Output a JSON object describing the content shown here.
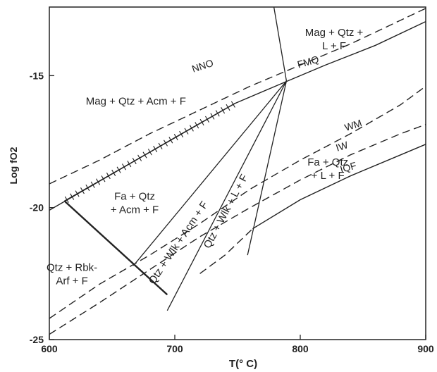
{
  "chart_data": {
    "type": "line",
    "xlabel": "T(° C)",
    "ylabel": "Log fO2",
    "xlim": [
      600,
      900
    ],
    "ylim": [
      -25,
      -12.4
    ],
    "x_ticks": [
      {
        "value": 600,
        "label": "600"
      },
      {
        "value": 700,
        "label": "700"
      },
      {
        "value": 800,
        "label": "800"
      },
      {
        "value": 900,
        "label": "900"
      }
    ],
    "y_ticks": [
      {
        "value": -15,
        "label": "-15"
      },
      {
        "value": -20,
        "label": "-20"
      },
      {
        "value": -25,
        "label": "-25"
      }
    ],
    "series": [
      {
        "name": "NNO",
        "style": "dashed",
        "points": [
          [
            600,
            -19.1
          ],
          [
            640,
            -18.2
          ],
          [
            680,
            -17.2
          ],
          [
            720,
            -16.3
          ],
          [
            760,
            -15.4
          ],
          [
            800,
            -14.6
          ],
          [
            840,
            -13.8
          ],
          [
            880,
            -12.9
          ],
          [
            900,
            -12.45
          ]
        ]
      },
      {
        "name": "FMQ",
        "style": "solid",
        "points": [
          [
            600,
            -20.1
          ],
          [
            640,
            -19.0
          ],
          [
            700,
            -17.35
          ],
          [
            748,
            -16.05
          ],
          [
            790,
            -15.2
          ],
          [
            820,
            -14.6
          ],
          [
            860,
            -13.85
          ],
          [
            900,
            -12.95
          ]
        ]
      },
      {
        "name": "WM",
        "style": "dashed",
        "points": [
          [
            600,
            -24.2
          ],
          [
            640,
            -22.9
          ],
          [
            680,
            -21.8
          ],
          [
            720,
            -20.6
          ],
          [
            760,
            -19.3
          ],
          [
            800,
            -18.2
          ],
          [
            840,
            -17.2
          ],
          [
            880,
            -16.1
          ],
          [
            900,
            -15.4
          ]
        ]
      },
      {
        "name": "IW",
        "style": "dashed",
        "points": [
          [
            600,
            -24.8
          ],
          [
            640,
            -23.6
          ],
          [
            680,
            -22.35
          ],
          [
            720,
            -21.1
          ],
          [
            760,
            -20.0
          ],
          [
            800,
            -18.95
          ],
          [
            840,
            -18.0
          ],
          [
            880,
            -17.2
          ],
          [
            900,
            -16.85
          ]
        ]
      },
      {
        "name": "IQF",
        "style": "mixed",
        "points": [
          [
            720,
            -22.5
          ],
          [
            740,
            -21.8
          ],
          [
            762,
            -20.8
          ],
          [
            800,
            -19.7
          ],
          [
            840,
            -18.8
          ],
          [
            880,
            -18.0
          ],
          [
            900,
            -17.6
          ]
        ]
      }
    ],
    "reactions": [
      {
        "style": "solid",
        "points": [
          [
            789,
            -15.2
          ],
          [
            667,
            -22.2
          ]
        ]
      },
      {
        "style": "solid",
        "points": [
          [
            789,
            -15.2
          ],
          [
            694,
            -23.9
          ]
        ]
      },
      {
        "style": "solid",
        "points": [
          [
            789,
            -15.2
          ],
          [
            758,
            -21.8
          ]
        ]
      },
      {
        "style": "solid",
        "points": [
          [
            779,
            -12.4
          ],
          [
            789,
            -15.2
          ]
        ]
      },
      {
        "style": "heavy",
        "points": [
          [
            612,
            -19.75
          ],
          [
            694,
            -23.3
          ]
        ]
      }
    ],
    "hatched_segment": {
      "points": [
        [
          612,
          -19.75
        ],
        [
          748,
          -16.05
        ]
      ]
    },
    "field_labels": [
      {
        "lines": [
          "Mag + Qtz +",
          "L + F"
        ],
        "x": 827,
        "y": -13.5
      },
      {
        "lines": [
          "Mag + Qtz + Acm + F"
        ],
        "x": 669,
        "y": -16.1
      },
      {
        "lines": [
          "Fa + Qtz",
          "+ L + F"
        ],
        "x": 822,
        "y": -18.4
      },
      {
        "lines": [
          "Fa + Qtz",
          "+ Acm + F"
        ],
        "x": 668,
        "y": -19.7
      },
      {
        "lines": [
          "Qtz + Rbk-",
          "Arf + F"
        ],
        "x": 618,
        "y": -22.4
      }
    ],
    "rotated_labels": [
      {
        "text": "Qtz + Wlk + Acm + F",
        "x": 705,
        "y": -21.4,
        "angle": -56
      },
      {
        "text": "Qtz + Wlk + L + F",
        "x": 743,
        "y": -20.2,
        "angle": -62
      },
      {
        "text": "NNO",
        "x": 723,
        "y": -14.75,
        "angle": -18
      },
      {
        "text": "FMQ",
        "x": 807,
        "y": -14.6,
        "angle": -16
      },
      {
        "text": "WM",
        "x": 843,
        "y": -17.0,
        "angle": -18
      },
      {
        "text": "IW",
        "x": 834,
        "y": -17.8,
        "angle": -18
      },
      {
        "text": "IQF",
        "x": 839,
        "y": -18.6,
        "angle": -16
      }
    ]
  }
}
